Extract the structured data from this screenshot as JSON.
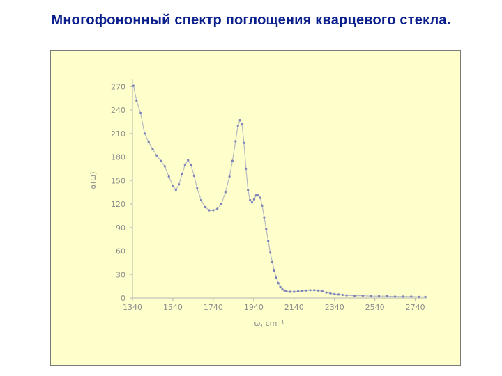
{
  "title": "Многофононный спектр поглощения кварцевого стекла.",
  "colors": {
    "title": "#0a1e8c",
    "panel": "#ffffcc",
    "series": "#7a80b8",
    "axis": "#9a9a9a"
  },
  "chart_data": {
    "type": "scatter",
    "title": "",
    "xlabel": "ω, cm⁻¹",
    "ylabel": "α(ω)",
    "xlim": [
      1340,
      2800
    ],
    "ylim": [
      0,
      280
    ],
    "grid": false,
    "xticks": [
      1340,
      1540,
      1740,
      1940,
      2140,
      2340,
      2540,
      2740
    ],
    "yticks": [
      0,
      30,
      60,
      90,
      120,
      150,
      180,
      210,
      240,
      270
    ],
    "xtick_labels": [
      "1340",
      "1540",
      "1740",
      "1940",
      "2140",
      "2340",
      "2540",
      "2740"
    ],
    "ytick_labels": [
      "0",
      "30",
      "60",
      "90",
      "120",
      "150",
      "180",
      "210",
      "240",
      "270"
    ],
    "series": [
      {
        "x": [
          1345,
          1360,
          1380,
          1400,
          1420,
          1440,
          1460,
          1480,
          1500,
          1520,
          1540,
          1555,
          1570,
          1585,
          1600,
          1615,
          1630,
          1645,
          1660,
          1680,
          1700,
          1720,
          1740,
          1760,
          1780,
          1800,
          1820,
          1835,
          1850,
          1862,
          1872,
          1882,
          1892,
          1902,
          1912,
          1922,
          1932,
          1942,
          1952,
          1962,
          1972,
          1982,
          1992,
          2002,
          2012,
          2022,
          2032,
          2042,
          2052,
          2062,
          2072,
          2082,
          2092,
          2102,
          2120,
          2140,
          2160,
          2180,
          2200,
          2220,
          2240,
          2260,
          2280,
          2300,
          2320,
          2340,
          2360,
          2380,
          2400,
          2440,
          2480,
          2520,
          2560,
          2600,
          2640,
          2680,
          2720,
          2760,
          2790
        ],
        "y": [
          271,
          252,
          236,
          210,
          199,
          190,
          182,
          175,
          168,
          155,
          143,
          138,
          145,
          158,
          170,
          176,
          170,
          156,
          140,
          125,
          116,
          112,
          112,
          114,
          120,
          135,
          155,
          175,
          200,
          220,
          227,
          222,
          198,
          165,
          138,
          125,
          122,
          126,
          131,
          131,
          128,
          118,
          103,
          88,
          73,
          58,
          46,
          35,
          26,
          19,
          14,
          11,
          9.5,
          8.5,
          8,
          8,
          8.5,
          9,
          9.5,
          10,
          10,
          9.5,
          8.5,
          7,
          6,
          5,
          4.5,
          4,
          3.5,
          3,
          3,
          2.5,
          2.5,
          2.5,
          2,
          2,
          2,
          1.5,
          1.5
        ]
      }
    ]
  }
}
